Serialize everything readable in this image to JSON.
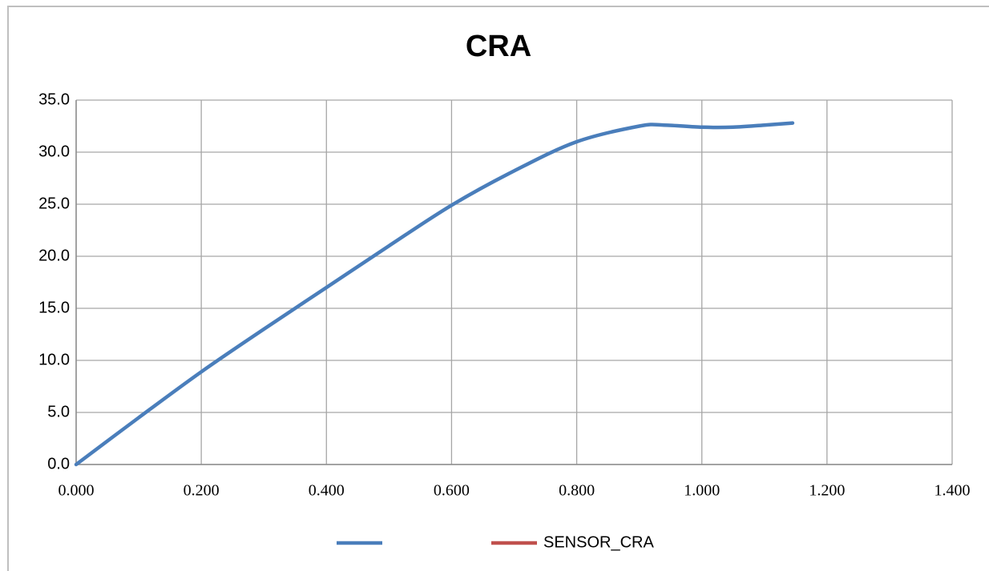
{
  "chart_data": {
    "type": "line",
    "title": "CRA",
    "x": [
      0,
      0.1,
      0.2,
      0.3,
      0.4,
      0.5,
      0.6,
      0.7,
      0.8,
      0.9,
      0.94,
      1.0,
      1.05,
      1.1,
      1.145
    ],
    "series": [
      {
        "color": "#4a7ebb",
        "values": [
          0,
          4.5,
          8.9,
          13.0,
          17.0,
          21.0,
          24.9,
          28.2,
          31.0,
          32.5,
          32.6,
          32.4,
          32.4,
          32.6,
          32.8
        ]
      },
      {
        "name": "SENSOR_CRA",
        "color": "#c0504d"
      }
    ],
    "xlim": [
      0,
      1.4
    ],
    "xticks": [
      {
        "value": 0,
        "label": "0.000"
      },
      {
        "value": 0.2,
        "label": "0.200"
      },
      {
        "value": 0.4,
        "label": "0.400"
      },
      {
        "value": 0.6,
        "label": "0.600"
      },
      {
        "value": 0.8,
        "label": "0.800"
      },
      {
        "value": 1.0,
        "label": "1.000"
      },
      {
        "value": 1.2,
        "label": "1.200"
      },
      {
        "value": 1.4,
        "label": "1.400"
      }
    ],
    "ylim": [
      0,
      35
    ],
    "yticks": [
      {
        "value": 0,
        "label": "0.0"
      },
      {
        "value": 5,
        "label": "5.0"
      },
      {
        "value": 10,
        "label": "10.0"
      },
      {
        "value": 15,
        "label": "15.0"
      },
      {
        "value": 20,
        "label": "20.0"
      },
      {
        "value": 25,
        "label": "25.0"
      },
      {
        "value": 30,
        "label": "30.0"
      },
      {
        "value": 35,
        "label": "35.0"
      }
    ],
    "grid": true,
    "legend": "bottom"
  }
}
